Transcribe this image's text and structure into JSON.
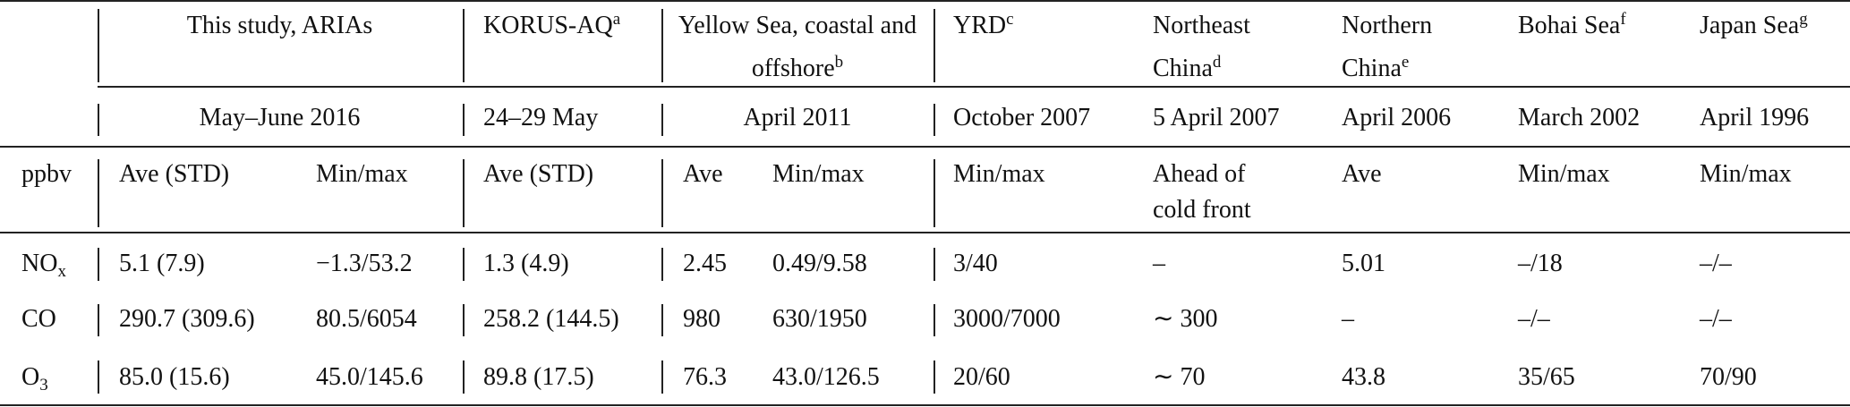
{
  "table": {
    "columns": [
      {
        "text": "This study, ARIAs"
      },
      {
        "text": "KORUS-AQ",
        "sup": "a"
      },
      {
        "text": "Yellow Sea, coastal and offshore",
        "sup": "b"
      },
      {
        "text": "YRD",
        "sup": "c"
      },
      {
        "text": "Northeast China",
        "sup": "d"
      },
      {
        "text": "Northern China",
        "sup": "e"
      },
      {
        "text": "Bohai Sea",
        "sup": "f"
      },
      {
        "text": "Japan Sea",
        "sup": "g"
      }
    ],
    "dates": [
      "May–June 2016",
      "24–29 May",
      "April 2011",
      "October 2007",
      "5 April 2007",
      "April 2006",
      "March 2002",
      "April 1996"
    ],
    "subheader": [
      "ppbv",
      "Ave (STD)",
      "Min/max",
      "Ave (STD)",
      "Ave",
      "Min/max",
      "Min/max",
      "Ahead of cold front",
      "Ave",
      "Min/max",
      "Min/max"
    ],
    "rows": [
      {
        "species": {
          "text": "NO",
          "sub": "x"
        },
        "cells": [
          "5.1 (7.9)",
          "−1.3/53.2",
          "1.3 (4.9)",
          "2.45",
          "0.49/9.58",
          "3/40",
          "–",
          "5.01",
          "–/18",
          "–/–"
        ]
      },
      {
        "species": {
          "text": "CO"
        },
        "cells": [
          "290.7 (309.6)",
          "80.5/6054",
          "258.2 (144.5)",
          "980",
          "630/1950",
          "3000/7000",
          "∼ 300",
          "–",
          "–/–",
          "–/–"
        ]
      },
      {
        "species": {
          "text": "O",
          "sub": "3"
        },
        "cells": [
          "85.0 (15.6)",
          "45.0/145.6",
          "89.8 (17.5)",
          "76.3",
          "43.0/126.5",
          "20/60",
          "∼ 70",
          "43.8",
          "35/65",
          "70/90"
        ]
      }
    ]
  }
}
